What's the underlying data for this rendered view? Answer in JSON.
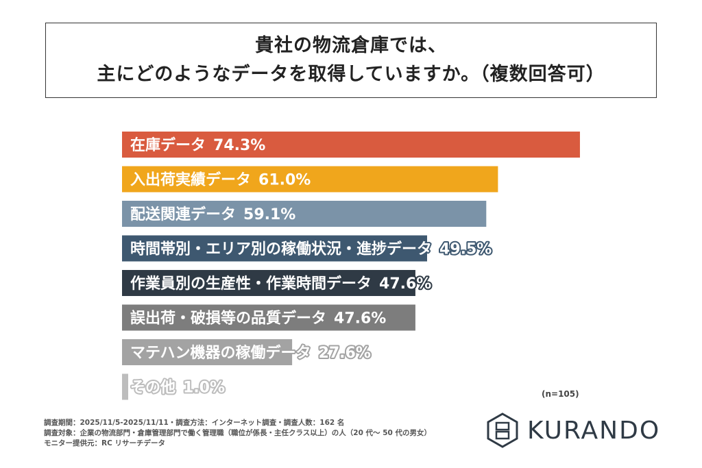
{
  "chart_data": {
    "type": "bar",
    "orientation": "horizontal",
    "title": [
      "貴社の物流倉庫では、",
      "主にどのようなデータを取得していますか。（複数回答可）"
    ],
    "categories": [
      "在庫データ",
      "入出荷実績データ",
      "配送関連データ",
      "時間帯別・エリア別の稼働状況・進捗データ",
      "作業員別の生産性・作業時間データ",
      "誤出荷・破損等の品質データ",
      "マテハン機器の稼働データ",
      "その他"
    ],
    "values": [
      74.3,
      61.0,
      59.1,
      49.5,
      47.6,
      47.6,
      27.6,
      1.0
    ],
    "value_labels": [
      "74.3%",
      "61.0%",
      "59.1%",
      "49.5%",
      "47.6%",
      "47.6%",
      "27.6%",
      "1.0%"
    ],
    "colors": [
      "#d95b3f",
      "#f0a61c",
      "#7b93a8",
      "#3e5870",
      "#2f3a45",
      "#7d7d7d",
      "#a3a3a3",
      "#bdbdbd"
    ],
    "xlim": [
      0,
      100
    ],
    "grid": false
  },
  "note": "(n=105)",
  "footer": [
    "調査期間：2025/11/5-2025/11/11・調査方法：インターネット調査・調査人数：162 名",
    "調査対象：企業の物流部門・倉庫管理部門で働く管理職（職位が係長・主任クラス以上）の人（20 代～ 50 代の男女）",
    "モニター提供元：RC リサーチデータ"
  ],
  "logo": {
    "text": "KURANDO"
  }
}
